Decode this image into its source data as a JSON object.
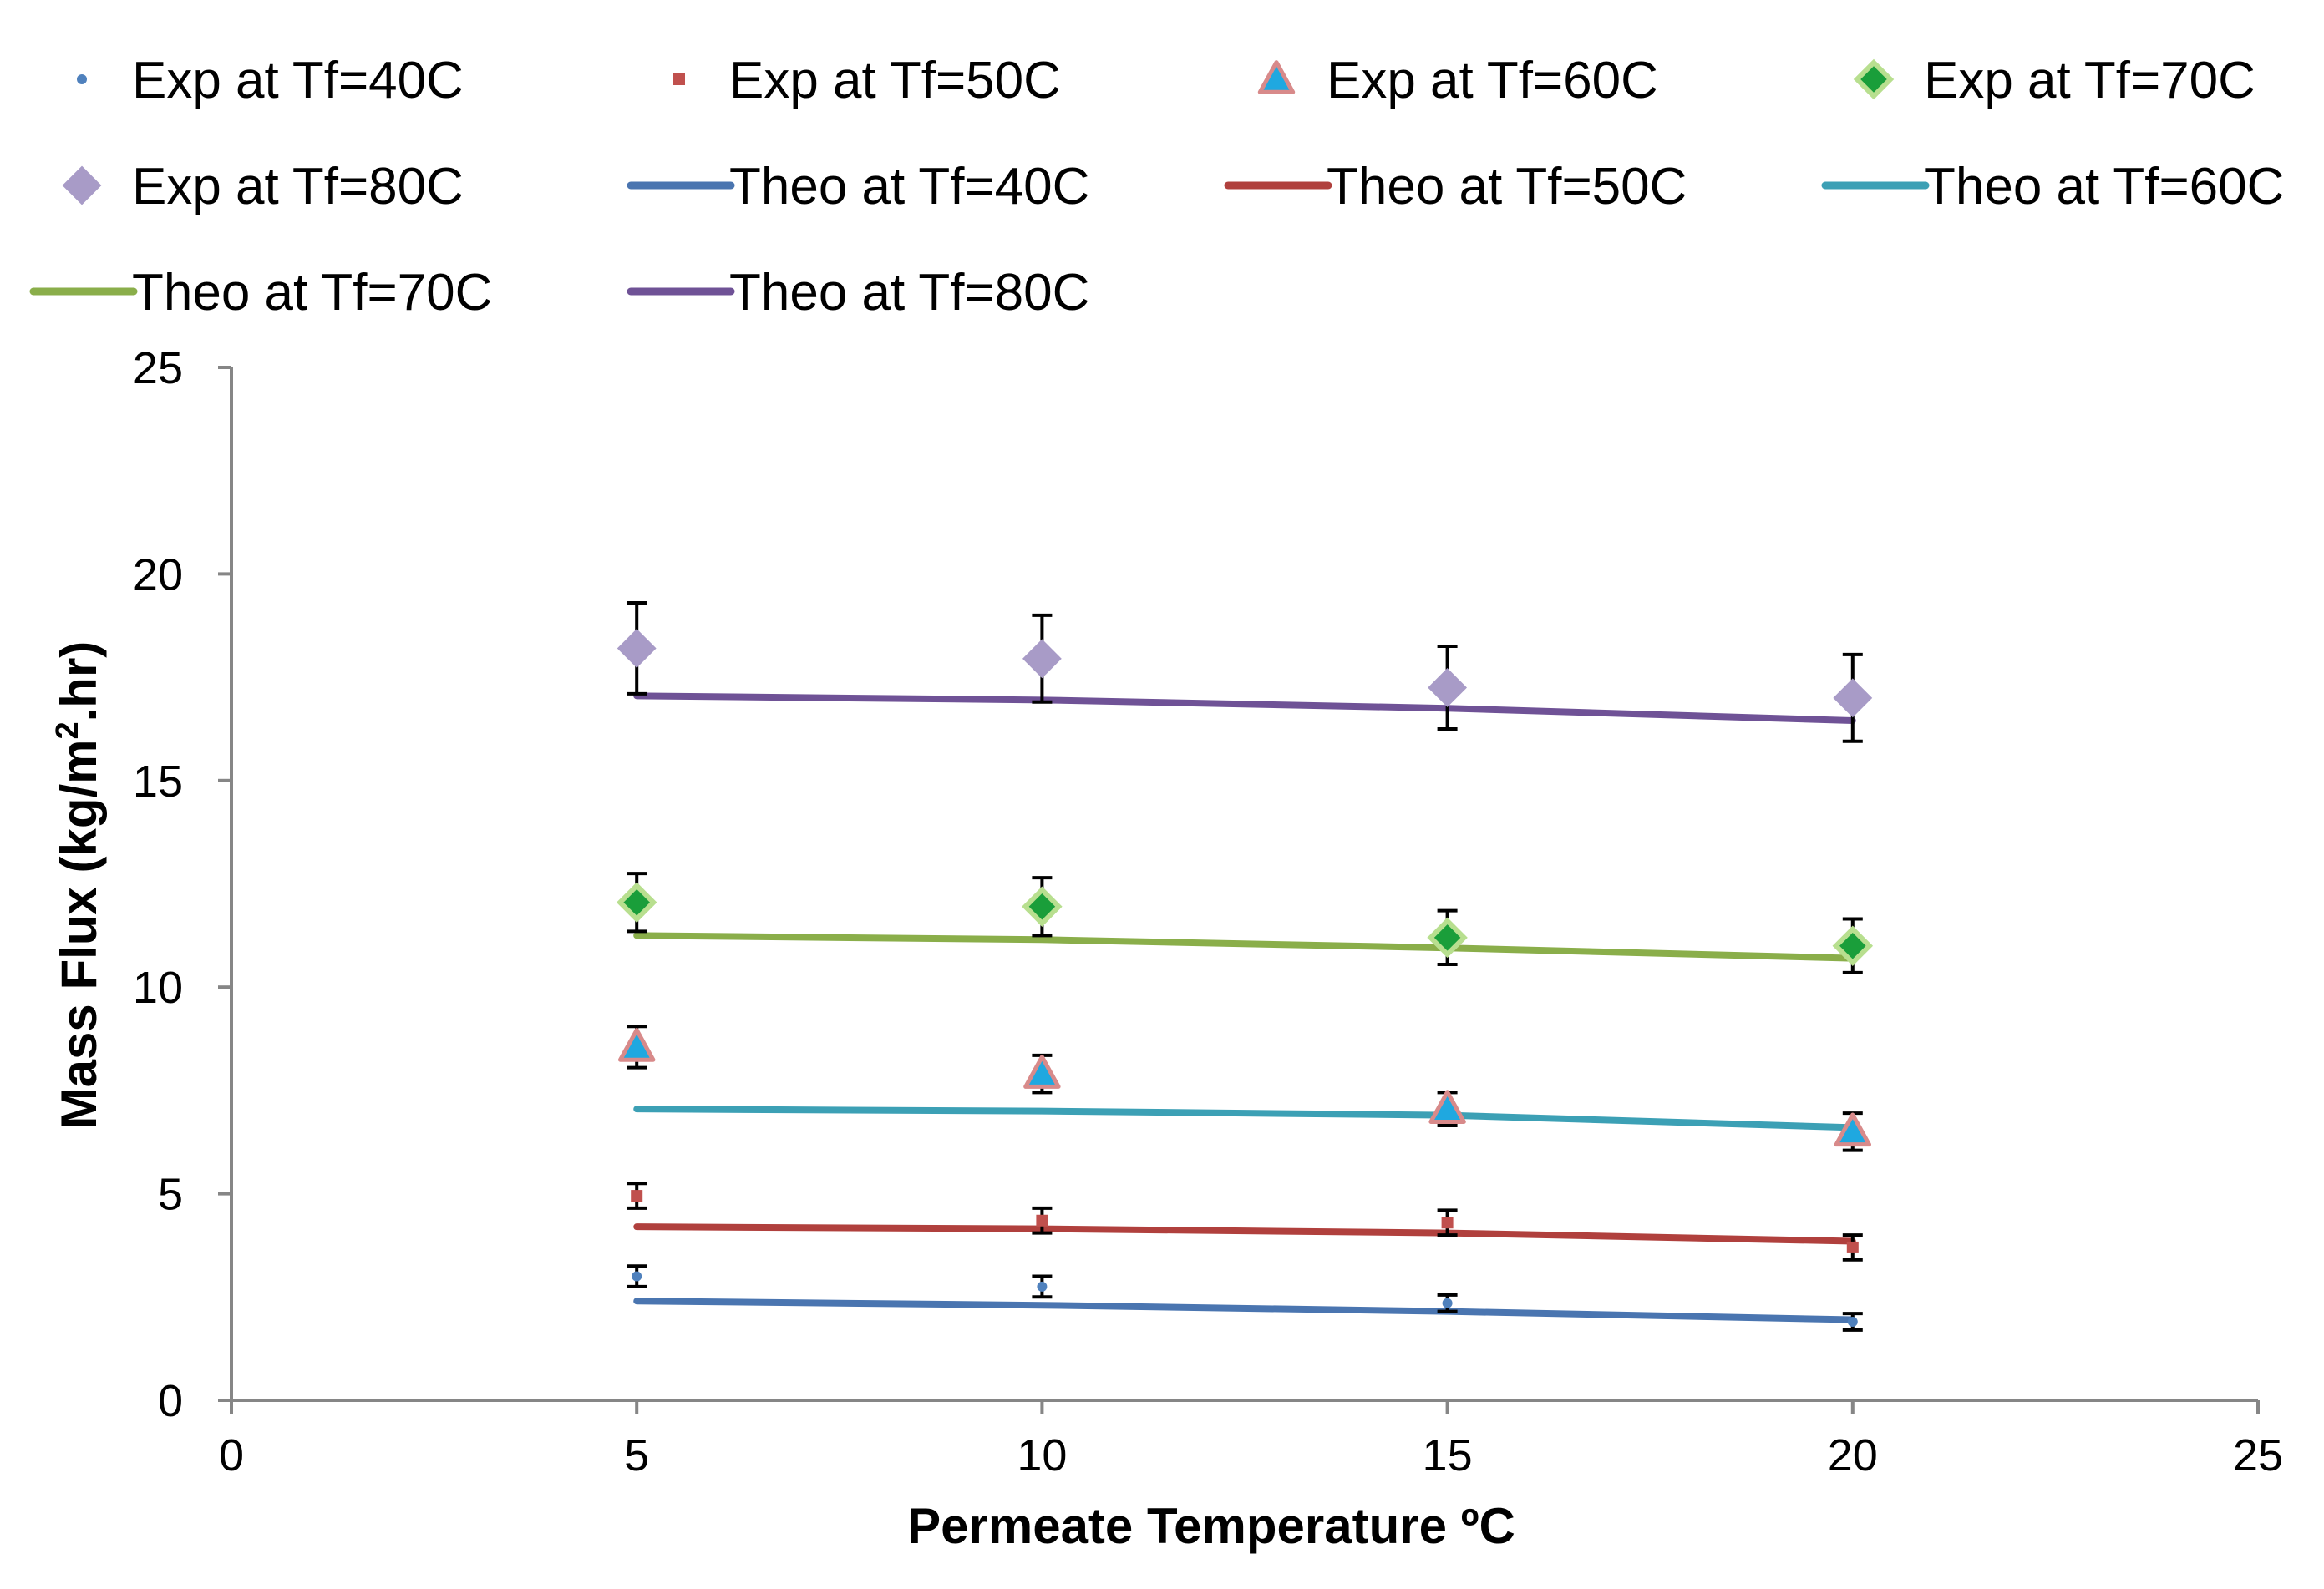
{
  "chart_data": {
    "type": "scatter",
    "title": "",
    "xlabel": "Permeate Temperature ºC",
    "ylabel_main": "Mass Flux (kg/m",
    "ylabel_sup": "2",
    "ylabel_tail": ".hr)",
    "xlim": [
      0,
      25
    ],
    "ylim": [
      0,
      25
    ],
    "xticks": [
      0,
      5,
      10,
      15,
      20,
      25
    ],
    "yticks": [
      0,
      5,
      10,
      15,
      20,
      25
    ],
    "grid": false,
    "legend_position": "top",
    "series": [
      {
        "name": "Exp at Tf=40C",
        "kind": "marker",
        "marker": "dot",
        "color": "#4F81BD",
        "x": [
          5,
          10,
          15,
          20
        ],
        "y": [
          3.0,
          2.75,
          2.35,
          1.9
        ],
        "err_up": [
          0.25,
          0.25,
          0.2,
          0.2
        ],
        "err_down": [
          0.25,
          0.25,
          0.2,
          0.2
        ]
      },
      {
        "name": "Exp at Tf=50C",
        "kind": "marker",
        "marker": "square",
        "color": "#C0504D",
        "x": [
          5,
          10,
          15,
          20
        ],
        "y": [
          4.95,
          4.35,
          4.3,
          3.7
        ],
        "err_up": [
          0.3,
          0.3,
          0.3,
          0.3
        ],
        "err_down": [
          0.3,
          0.3,
          0.3,
          0.3
        ]
      },
      {
        "name": "Exp at Tf=60C",
        "kind": "marker",
        "marker": "triangle",
        "color": "#1FA8E0",
        "stroke": "#D88A8A",
        "x": [
          5,
          10,
          15,
          20
        ],
        "y": [
          8.55,
          7.9,
          7.05,
          6.5
        ],
        "err_up": [
          0.5,
          0.45,
          0.4,
          0.45
        ],
        "err_down": [
          0.5,
          0.45,
          0.4,
          0.45
        ]
      },
      {
        "name": "Exp at Tf=70C",
        "kind": "marker",
        "marker": "diamond",
        "color": "#1A9E3A",
        "stroke": "#B8DF8F",
        "x": [
          5,
          10,
          15,
          20
        ],
        "y": [
          12.05,
          11.95,
          11.2,
          11.0
        ],
        "err_up": [
          0.7,
          0.7,
          0.65,
          0.65
        ],
        "err_down": [
          0.7,
          0.7,
          0.65,
          0.65
        ]
      },
      {
        "name": "Exp at Tf=80C",
        "kind": "marker",
        "marker": "diamond",
        "color": "#A89BC7",
        "stroke": "#A89BC7",
        "x": [
          5,
          10,
          15,
          20
        ],
        "y": [
          18.2,
          17.95,
          17.25,
          17.0
        ],
        "err_up": [
          1.1,
          1.05,
          1.0,
          1.05
        ],
        "err_down": [
          1.1,
          1.05,
          1.0,
          1.05
        ]
      },
      {
        "name": "Theo at Tf=40C",
        "kind": "line",
        "color": "#4A75B0",
        "x": [
          5,
          10,
          15,
          20
        ],
        "y": [
          2.4,
          2.3,
          2.15,
          1.95
        ]
      },
      {
        "name": "Theo at Tf=50C",
        "kind": "line",
        "color": "#B0403D",
        "x": [
          5,
          10,
          15,
          20
        ],
        "y": [
          4.2,
          4.15,
          4.05,
          3.85
        ]
      },
      {
        "name": "Theo at Tf=60C",
        "kind": "line",
        "color": "#3CA0B5",
        "x": [
          5,
          10,
          15,
          20
        ],
        "y": [
          7.05,
          7.0,
          6.9,
          6.6
        ]
      },
      {
        "name": "Theo at Tf=70C",
        "kind": "line",
        "color": "#8AAE4A",
        "x": [
          5,
          10,
          15,
          20
        ],
        "y": [
          11.25,
          11.15,
          10.95,
          10.7
        ]
      },
      {
        "name": "Theo at Tf=80C",
        "kind": "line",
        "color": "#6F5296",
        "x": [
          5,
          10,
          15,
          20
        ],
        "y": [
          17.05,
          16.95,
          16.75,
          16.45
        ]
      }
    ]
  }
}
